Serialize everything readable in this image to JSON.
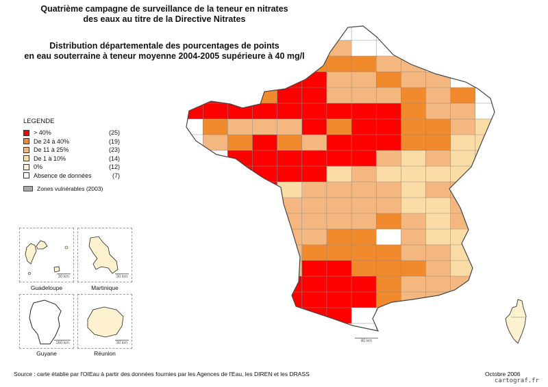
{
  "title": {
    "line1": "Quatrième campagne de surveillance de la teneur en nitrates",
    "line2": "des eaux au titre de la Directive Nitrates",
    "line3": "Distribution départementale des pourcentages de points",
    "line4": "en eau souterraine à teneur moyenne 2004-2005 supérieure à 40 mg/l"
  },
  "legend": {
    "heading": "LEGENDE",
    "classes": [
      {
        "label": "> 40%",
        "count": "(25)",
        "color": "#ff0000"
      },
      {
        "label": "De 24 à 40%",
        "count": "(19)",
        "color": "#f08a2c"
      },
      {
        "label": "De 11 à 25%",
        "count": "(23)",
        "color": "#f5b780"
      },
      {
        "label": "De 1 à 10%",
        "count": "(14)",
        "color": "#fbdca6"
      },
      {
        "label": "0%",
        "count": "(12)",
        "color": "#fdf1cf"
      },
      {
        "label": "Absence de données",
        "count": "(7)",
        "color": "#ffffff"
      }
    ],
    "zones_label": "Zones vulnérables (2003)"
  },
  "insets": [
    {
      "name": "Guadeloupe",
      "scale": "30 km"
    },
    {
      "name": "Martinique",
      "scale": "30 km"
    },
    {
      "name": "Guyane",
      "scale": "160 km"
    },
    {
      "name": "Réunion",
      "scale": "30 km"
    }
  ],
  "main_scale": "80 km",
  "source": "Source : carte établie par l'OIEau à partir des données fournies par les Agences de l'Eau, les DIREN et les DRASS",
  "date": "Octobre 2006",
  "credit": "cartograf.fr"
}
